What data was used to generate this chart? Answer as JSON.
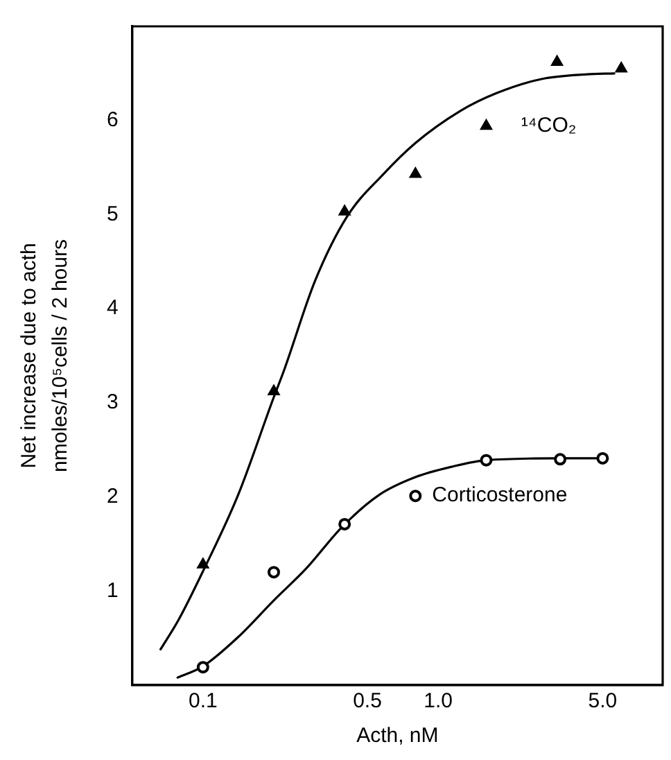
{
  "chart_data": {
    "type": "scatter",
    "xlabel": "Acth, nM",
    "ylabel": [
      "Net increase due to acth",
      "nmoles/10⁵cells / 2 hours"
    ],
    "log": "x",
    "xlim": [
      0.05,
      9
    ],
    "ylim": [
      0,
      7
    ],
    "xticks": [
      0.1,
      0.5,
      {
        "value": 1,
        "label": "1.0"
      },
      {
        "value": 5,
        "label": "5.0"
      }
    ],
    "yticks": [
      1,
      2,
      3,
      4,
      5,
      6
    ],
    "grid": false,
    "legend": false,
    "series": [
      {
        "name": "¹⁴CO₂",
        "marker": "triangle",
        "color": "#000000",
        "x": [
          0.1,
          0.2,
          0.4,
          0.8,
          1.6,
          3.2,
          6
        ],
        "values": [
          1.28,
          3.12,
          5.03,
          5.43,
          5.94,
          6.62,
          6.55
        ]
      },
      {
        "name": "Corticosterone",
        "marker": "circle",
        "color": "#000000",
        "x": [
          0.1,
          0.2,
          0.4,
          0.8,
          1.6,
          3.3,
          5
        ],
        "values": [
          0.19,
          1.2,
          1.71,
          2.01,
          2.39,
          2.4,
          2.41
        ]
      },
      {
        "type": "line",
        "marker": "none",
        "color": "#000000",
        "x": [
          0.066,
          0.079,
          0.1,
          0.141,
          0.2,
          0.22,
          0.3,
          0.41,
          0.58,
          0.8,
          1.24,
          1.77,
          2.75,
          4.3,
          5.6
        ],
        "values": [
          0.38,
          0.7,
          1.21,
          2.02,
          3.06,
          3.33,
          4.3,
          4.98,
          5.42,
          5.76,
          6.1,
          6.29,
          6.44,
          6.49,
          6.5
        ]
      },
      {
        "type": "line",
        "marker": "none",
        "color": "#000000",
        "x": [
          0.078,
          0.1,
          0.141,
          0.2,
          0.275,
          0.39,
          0.56,
          0.8,
          1.14,
          1.6,
          3.3,
          5
        ],
        "values": [
          0.08,
          0.2,
          0.51,
          0.9,
          1.24,
          1.68,
          2.02,
          2.21,
          2.32,
          2.39,
          2.41,
          2.41
        ]
      }
    ]
  }
}
